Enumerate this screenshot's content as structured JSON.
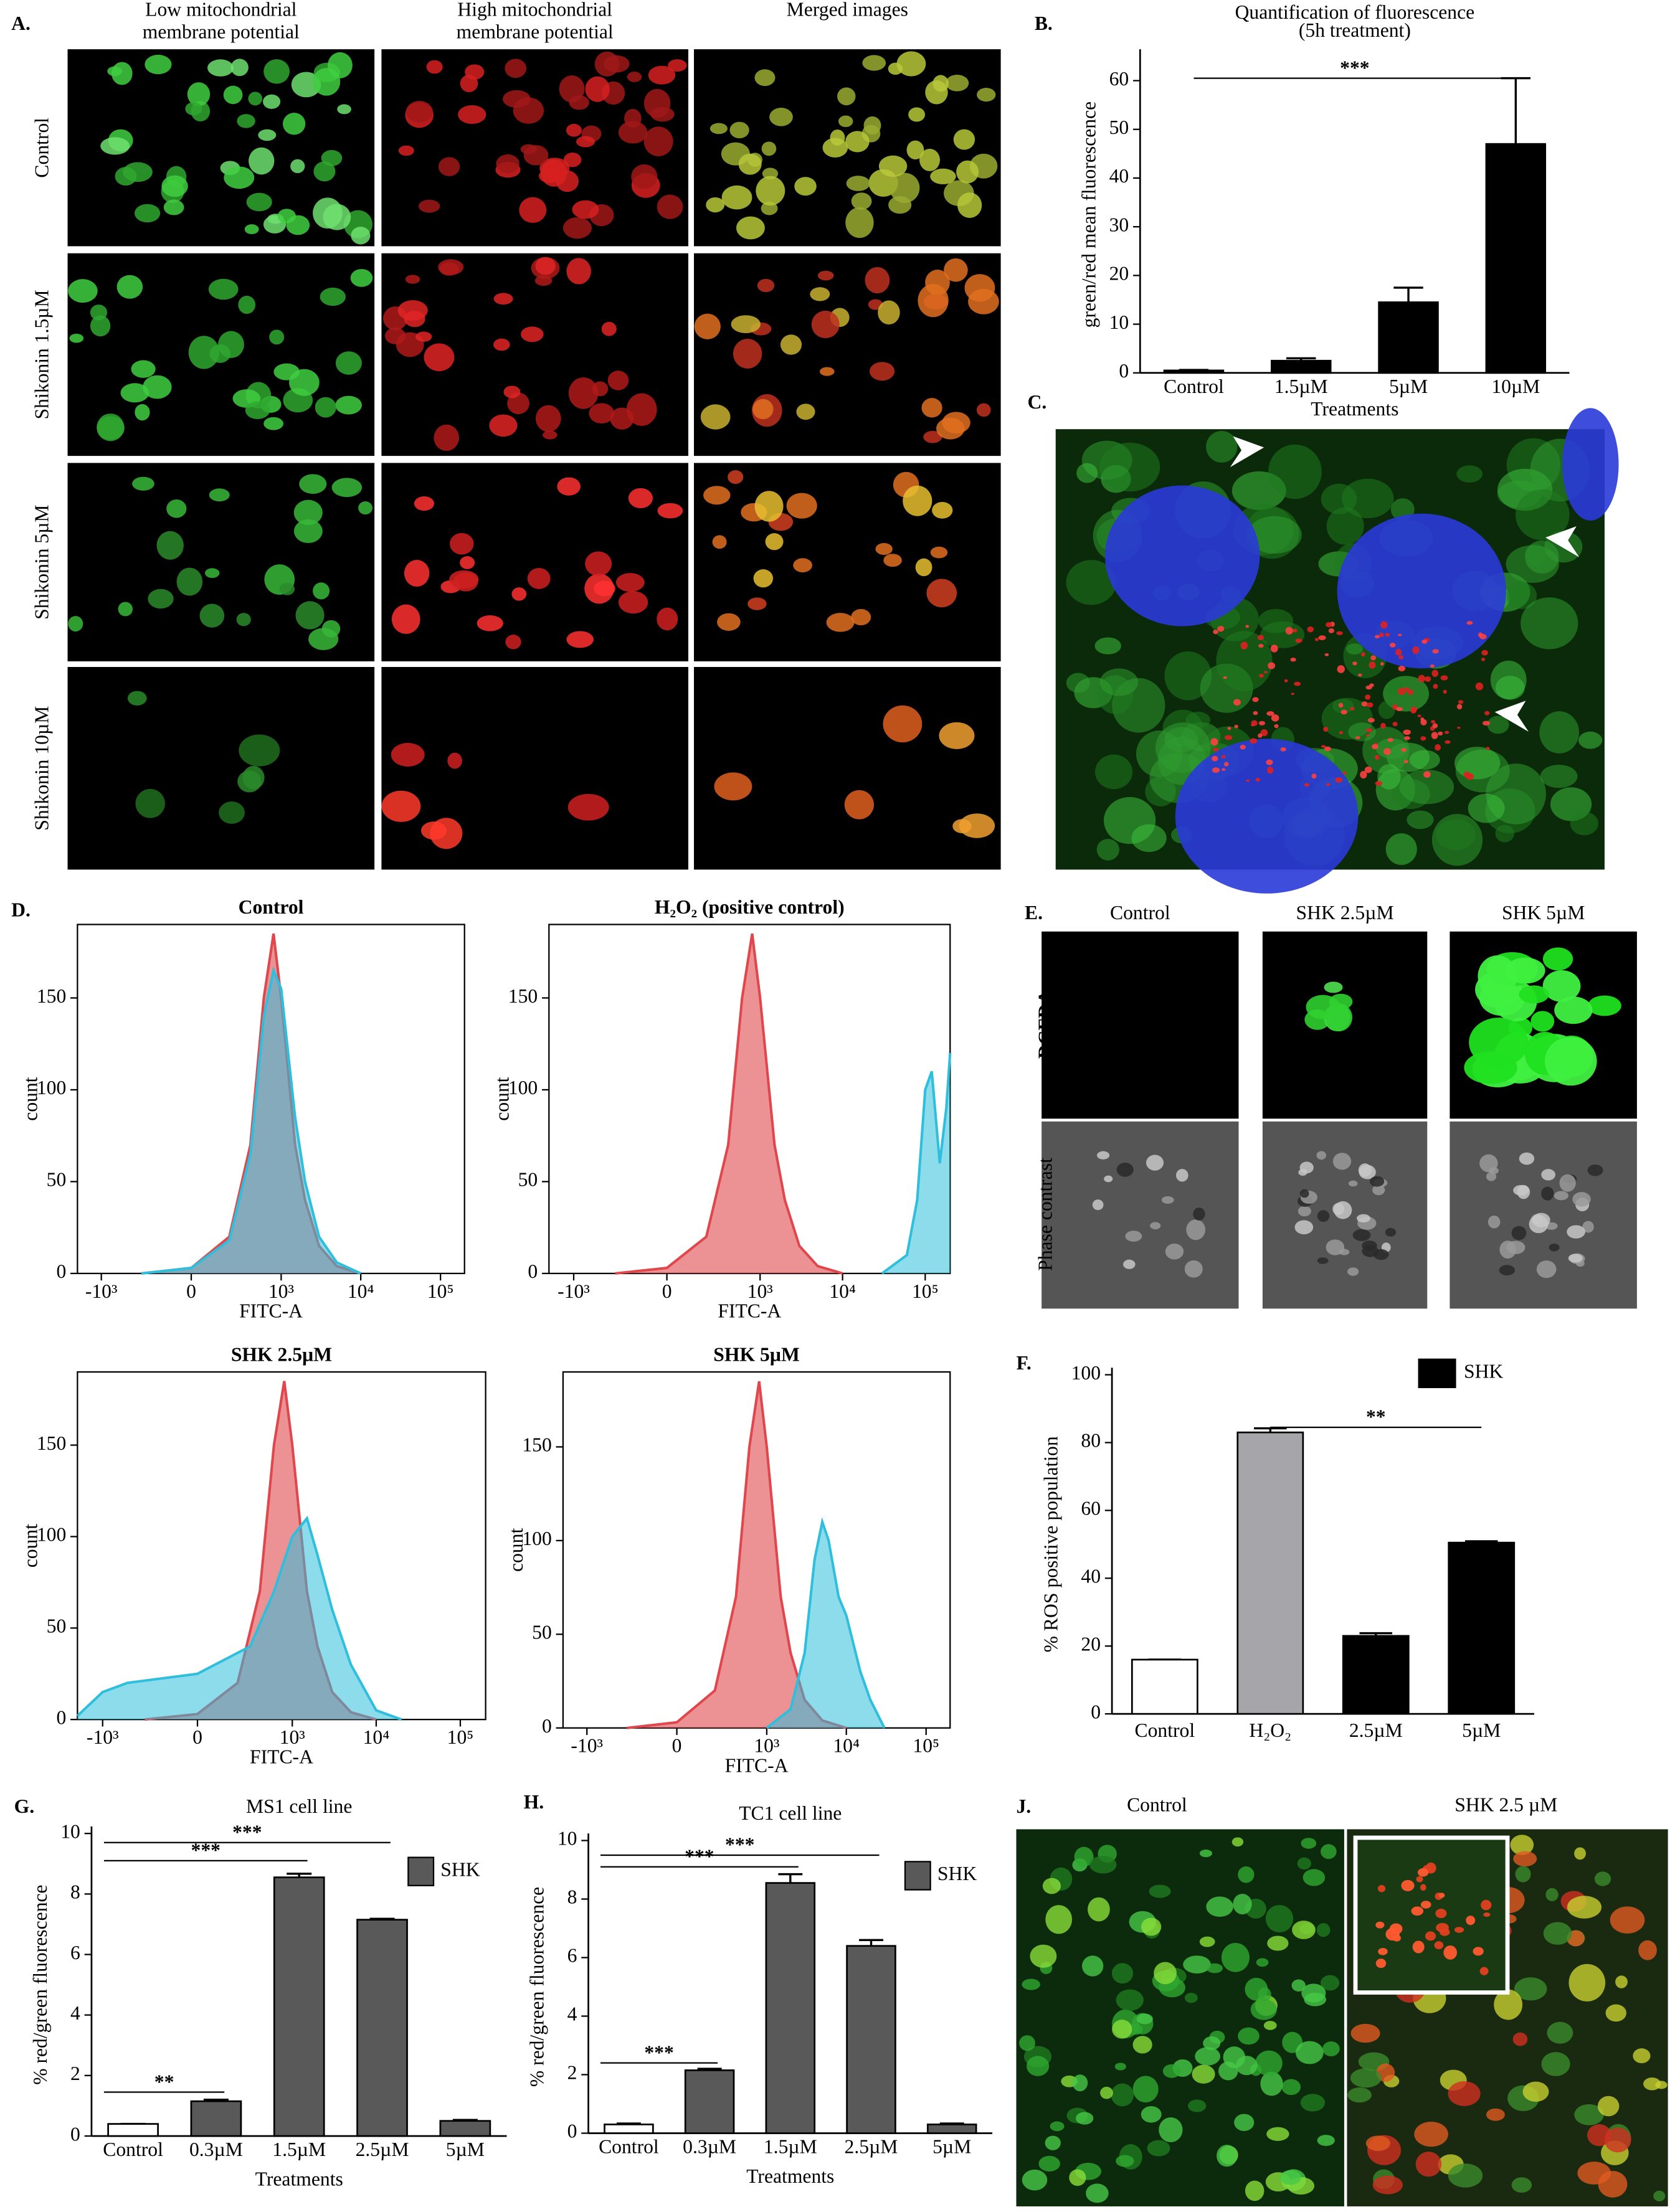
{
  "panel_labels": [
    "A.",
    "B.",
    "C.",
    "D.",
    "E.",
    "F.",
    "G.",
    "H.",
    "J."
  ],
  "panel_a": {
    "columns": [
      [
        "Low mitochondrial",
        "membrane potential"
      ],
      [
        "High mitochondrial",
        "membrane potential"
      ],
      [
        "Merged images"
      ]
    ],
    "rows": [
      "Control",
      "Shikonin 1.5µM",
      "Shikonin 5µM",
      "Shikonin 10µM"
    ]
  },
  "panel_e": {
    "columns": [
      "Control",
      "SHK 2.5µM",
      "SHK 5µM"
    ],
    "rows": [
      "DCFDA",
      "Phase contrast"
    ]
  },
  "panel_j": {
    "columns": [
      "Control",
      "SHK 2.5 µM"
    ]
  },
  "chart_data": [
    {
      "type": "bar",
      "title": "Quantification of fluorescence",
      "subtitle": "(5h treatment)",
      "categories": [
        "Control",
        "1.5µM",
        "5µM",
        "10µM"
      ],
      "values": [
        0.5,
        2.5,
        14.5,
        47
      ],
      "errors": [
        0.1,
        0.5,
        3,
        13.5
      ],
      "colors": [
        "#000000",
        "#000000",
        "#000000",
        "#000000"
      ],
      "xlabel": "Treatments",
      "ylabel": "green/red mean fluorescence",
      "ylim": [
        0,
        65
      ],
      "yticks": [
        0,
        10,
        20,
        30,
        40,
        50,
        60
      ],
      "annotations": [
        "***"
      ]
    },
    {
      "type": "histogram-overlay",
      "title": "Control",
      "xlabel": "FITC-A",
      "ylabel": "count",
      "xscale": "biexponential",
      "xlim": [
        -2000,
        200000
      ],
      "ylim": [
        0,
        190
      ],
      "xticks": [
        {
          "value": -1000,
          "label": "-10³"
        },
        0,
        {
          "value": 1000,
          "label": "10³"
        },
        {
          "value": 10000,
          "label": "10⁴"
        },
        {
          "value": 100000,
          "label": "10⁵"
        }
      ],
      "yticks": [
        0,
        50,
        100,
        150
      ],
      "series": [
        {
          "color": "#e0474c",
          "x": [
            -300,
            0,
            200,
            400,
            600,
            800,
            1000,
            1500,
            2000,
            3000,
            5000,
            10000
          ],
          "values": [
            0,
            3,
            20,
            70,
            150,
            185,
            150,
            70,
            40,
            15,
            4,
            0
          ]
        },
        {
          "color": "#2fbfdc",
          "x": [
            -300,
            0,
            200,
            400,
            600,
            800,
            1000,
            1500,
            2000,
            3000,
            5000,
            10000
          ],
          "values": [
            0,
            3,
            18,
            65,
            140,
            165,
            155,
            85,
            50,
            20,
            6,
            0
          ]
        }
      ]
    },
    {
      "type": "histogram-overlay",
      "title": "H₂O₂ (positive control)",
      "xlabel": "FITC-A",
      "ylabel": "count",
      "xscale": "biexponential",
      "xlim": [
        -2000,
        200000
      ],
      "ylim": [
        0,
        190
      ],
      "xticks": [
        {
          "value": -1000,
          "label": "-10³"
        },
        0,
        {
          "value": 1000,
          "label": "10³"
        },
        {
          "value": 10000,
          "label": "10⁴"
        },
        {
          "value": 100000,
          "label": "10⁵"
        }
      ],
      "yticks": [
        0,
        50,
        100,
        150
      ],
      "series": [
        {
          "color": "#e0474c",
          "x": [
            -300,
            0,
            200,
            400,
            600,
            800,
            1000,
            1500,
            2000,
            3000,
            5000,
            10000
          ],
          "values": [
            0,
            3,
            20,
            70,
            150,
            185,
            150,
            70,
            40,
            15,
            4,
            0
          ]
        },
        {
          "color": "#2fbfdc",
          "x": [
            30000,
            60000,
            80000,
            100000,
            120000,
            150000,
            180000,
            200000
          ],
          "values": [
            0,
            10,
            40,
            100,
            110,
            60,
            90,
            120
          ]
        }
      ]
    },
    {
      "type": "histogram-overlay",
      "title": "SHK 2.5µM",
      "xlabel": "FITC-A",
      "ylabel": "count",
      "xscale": "biexponential",
      "xlim": [
        -2000,
        200000
      ],
      "ylim": [
        0,
        190
      ],
      "xticks": [
        {
          "value": -1000,
          "label": "-10³"
        },
        0,
        {
          "value": 1000,
          "label": "10³"
        },
        {
          "value": 10000,
          "label": "10⁴"
        },
        {
          "value": 100000,
          "label": "10⁵"
        }
      ],
      "yticks": [
        0,
        50,
        100,
        150
      ],
      "series": [
        {
          "color": "#e0474c",
          "x": [
            -300,
            0,
            200,
            400,
            600,
            800,
            1000,
            1500,
            2000,
            3000,
            5000,
            10000
          ],
          "values": [
            0,
            3,
            20,
            70,
            150,
            185,
            150,
            70,
            40,
            15,
            4,
            0
          ]
        },
        {
          "color": "#2fbfdc",
          "x": [
            -2000,
            -1000,
            -500,
            0,
            300,
            600,
            1000,
            1500,
            2000,
            3000,
            5000,
            10000,
            20000
          ],
          "values": [
            2,
            15,
            20,
            25,
            40,
            70,
            100,
            110,
            90,
            60,
            30,
            5,
            0
          ]
        }
      ]
    },
    {
      "type": "histogram-overlay",
      "title": "SHK 5µM",
      "xlabel": "FITC-A",
      "ylabel": "count",
      "xscale": "biexponential",
      "xlim": [
        -2000,
        200000
      ],
      "ylim": [
        0,
        190
      ],
      "xticks": [
        {
          "value": -1000,
          "label": "-10³"
        },
        0,
        {
          "value": 1000,
          "label": "10³"
        },
        {
          "value": 10000,
          "label": "10⁴"
        },
        {
          "value": 100000,
          "label": "10⁵"
        }
      ],
      "yticks": [
        0,
        50,
        100,
        150
      ],
      "series": [
        {
          "color": "#e0474c",
          "x": [
            -300,
            0,
            200,
            400,
            600,
            800,
            1000,
            1500,
            2000,
            3000,
            5000,
            10000
          ],
          "values": [
            0,
            3,
            20,
            70,
            150,
            185,
            150,
            70,
            40,
            15,
            4,
            0
          ]
        },
        {
          "color": "#2fbfdc",
          "x": [
            1000,
            2000,
            3000,
            4000,
            5000,
            6000,
            8000,
            10000,
            15000,
            20000,
            30000
          ],
          "values": [
            0,
            10,
            40,
            90,
            110,
            100,
            70,
            60,
            30,
            15,
            0
          ]
        }
      ]
    },
    {
      "type": "bar",
      "categories": [
        "Control",
        "H₂O₂",
        "2.5µM",
        "5µM"
      ],
      "values": [
        16,
        83,
        23,
        50.5
      ],
      "errors": [
        0,
        1.2,
        0.8,
        0.4
      ],
      "colors": [
        "#ffffff",
        "#a6a6aa",
        "#000000",
        "#000000"
      ],
      "ylabel": "% ROS positive population",
      "ylim": [
        0,
        100
      ],
      "yticks": [
        0,
        20,
        40,
        60,
        80,
        100
      ],
      "annotations": [
        "**"
      ],
      "legend": {
        "label": "SHK",
        "color": "#000000"
      }
    },
    {
      "type": "bar",
      "title": "MS1 cell line",
      "categories": [
        "Control",
        "0.3µM",
        "1.5µM",
        "2.5µM",
        "5µM"
      ],
      "values": [
        0.4,
        1.15,
        8.55,
        7.15,
        0.5
      ],
      "errors": [
        0,
        0.05,
        0.12,
        0.03,
        0.03
      ],
      "colors": [
        "#ffffff",
        "#595959",
        "#595959",
        "#595959",
        "#595959"
      ],
      "xlabel": "Treatments",
      "ylabel": "% red/green fluorescence",
      "ylim": [
        0,
        10
      ],
      "yticks": [
        0,
        2,
        4,
        6,
        8,
        10
      ],
      "annotations": [
        "**",
        "***",
        "***"
      ],
      "legend": {
        "label": "SHK",
        "color": "#595959"
      }
    },
    {
      "type": "bar",
      "title": "TC1 cell line",
      "categories": [
        "Control",
        "0.3µM",
        "1.5µM",
        "2.5µM",
        "5µM"
      ],
      "values": [
        0.3,
        2.15,
        8.55,
        6.4,
        0.3
      ],
      "errors": [
        0.03,
        0.05,
        0.3,
        0.2,
        0.03
      ],
      "colors": [
        "#ffffff",
        "#595959",
        "#595959",
        "#595959",
        "#595959"
      ],
      "xlabel": "Treatments",
      "ylabel": "% red/green fluorescence",
      "ylim": [
        0,
        10
      ],
      "yticks": [
        0,
        2,
        4,
        6,
        8,
        10
      ],
      "annotations": [
        "***",
        "***",
        "***"
      ],
      "legend": {
        "label": "SHK",
        "color": "#595959"
      }
    }
  ]
}
